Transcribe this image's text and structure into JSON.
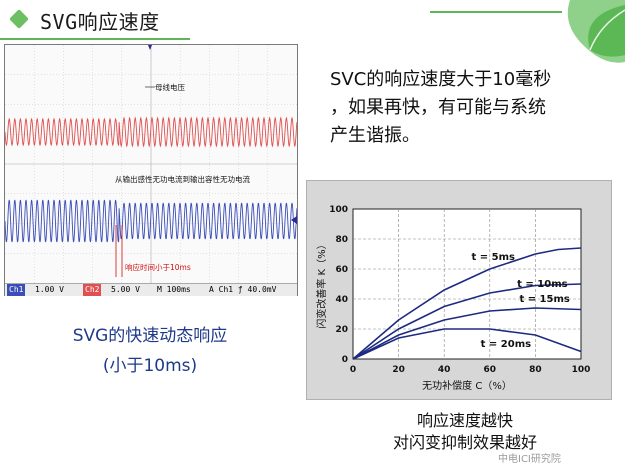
{
  "slide": {
    "title": "SVG响应速度"
  },
  "scope": {
    "label_bus_voltage": "母线电压",
    "label_transition": "从输出感性无功电流到输出容性无功电流",
    "label_response": "响应时间小于10ms",
    "status_bar": {
      "ch1": "Ch1",
      "ch1_scale": "1.00 V",
      "ch2": "Ch2",
      "ch2_scale": "5.00 V",
      "time": "M 100ms",
      "trigger": "A  Ch1  ƒ  40.0mV"
    },
    "colors": {
      "voltage": "#e05050",
      "current": "#3a4db8"
    }
  },
  "caption_left": {
    "line1": "SVG的快速动态响应",
    "line2": "(小于10ms)"
  },
  "svc_text": {
    "line1": "SVC的响应速度大于10毫秒",
    "line2": "，如果再快，有可能与系统",
    "line3": "产生谐振。"
  },
  "chart_data": {
    "type": "line",
    "title": "",
    "xlabel": "无功补偿度 C（%）",
    "ylabel": "闪变改善率 K（%）",
    "xlim": [
      0,
      100
    ],
    "ylim": [
      0,
      100
    ],
    "x_ticks": [
      0,
      20,
      40,
      60,
      80,
      100
    ],
    "y_ticks": [
      0,
      20,
      40,
      60,
      80,
      100
    ],
    "grid": true,
    "series": [
      {
        "name": "t = 5ms",
        "x": [
          0,
          20,
          40,
          60,
          80,
          90,
          100
        ],
        "y": [
          0,
          26,
          46,
          60,
          70,
          73,
          74
        ]
      },
      {
        "name": "t = 10ms",
        "x": [
          0,
          20,
          40,
          60,
          80,
          100
        ],
        "y": [
          0,
          20,
          35,
          44,
          49,
          50
        ]
      },
      {
        "name": "t = 15ms",
        "x": [
          0,
          20,
          40,
          60,
          80,
          100
        ],
        "y": [
          0,
          16,
          26,
          32,
          34,
          33
        ]
      },
      {
        "name": "t = 20ms",
        "x": [
          0,
          20,
          40,
          60,
          70,
          80,
          100
        ],
        "y": [
          0,
          14,
          20,
          20,
          18,
          16,
          5
        ]
      }
    ]
  },
  "caption_right": {
    "line1": "响应速度越快",
    "line2": "对闪变抑制效果越好"
  },
  "watermark": "中电ICI研究院"
}
